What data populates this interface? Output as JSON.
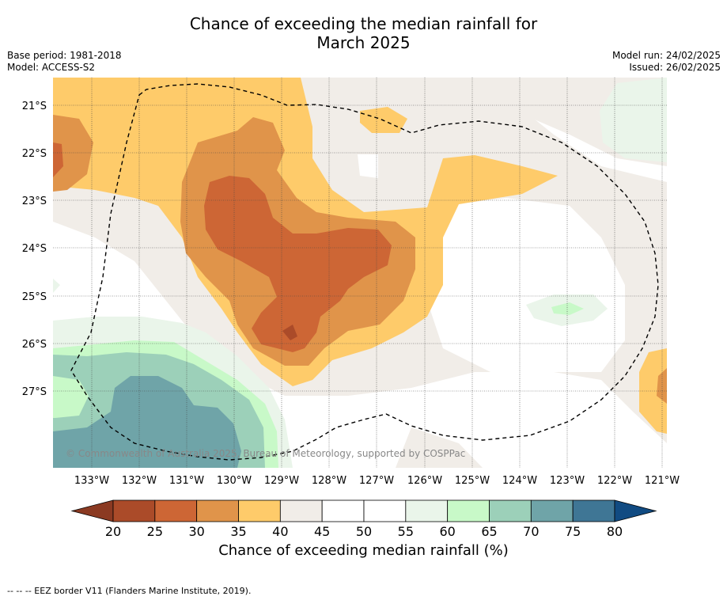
{
  "title_line1": "Chance of exceeding the median rainfall for",
  "title_line2": "March 2025",
  "base_period": "Base period: 1981-2018",
  "model": "Model: ACCESS-S2",
  "model_run": "Model run: 24/02/2025",
  "issued": "Issued: 26/02/2025",
  "copyright": "© Commonwealth of Australia 2025, Bureau of Meteorology, supported by COSPPac",
  "lat_labels": [
    "21°S",
    "22°S",
    "23°S",
    "24°S",
    "25°S",
    "26°S",
    "27°S"
  ],
  "lon_labels": [
    "133°W",
    "132°W",
    "131°W",
    "130°W",
    "129°W",
    "128°W",
    "127°W",
    "126°W",
    "125°W",
    "124°W",
    "123°W",
    "122°W",
    "121°W"
  ],
  "colorbar": {
    "ticks": [
      "20",
      "25",
      "30",
      "35",
      "40",
      "45",
      "50",
      "55",
      "60",
      "65",
      "70",
      "75",
      "80"
    ],
    "colors": [
      "#ab4b29",
      "#cd6635",
      "#e0944a",
      "#fecb6a",
      "#f1ede8",
      "#ffffff",
      "#ffffff",
      "#eaf5ea",
      "#c8f9c8",
      "#9cd0b9",
      "#6fa4a8",
      "#3f7695"
    ],
    "below_color": "#8b3a22",
    "above_color": "#114b82",
    "label": "Chance of exceeding median rainfall (%)"
  },
  "map_colors": {
    "neutral": "#f1ede8",
    "yellow": "#fecb6a",
    "orange": "#e0944a",
    "darkorange": "#cd6635",
    "red": "#ab4b29",
    "palegreen": "#eaf5ea",
    "green": "#c8f9c8",
    "seagreen": "#9cd0b9",
    "teal": "#6fa4a8"
  },
  "footnote": "--  --  -- EEZ border V11 (Flanders Marine Institute, 2019)."
}
